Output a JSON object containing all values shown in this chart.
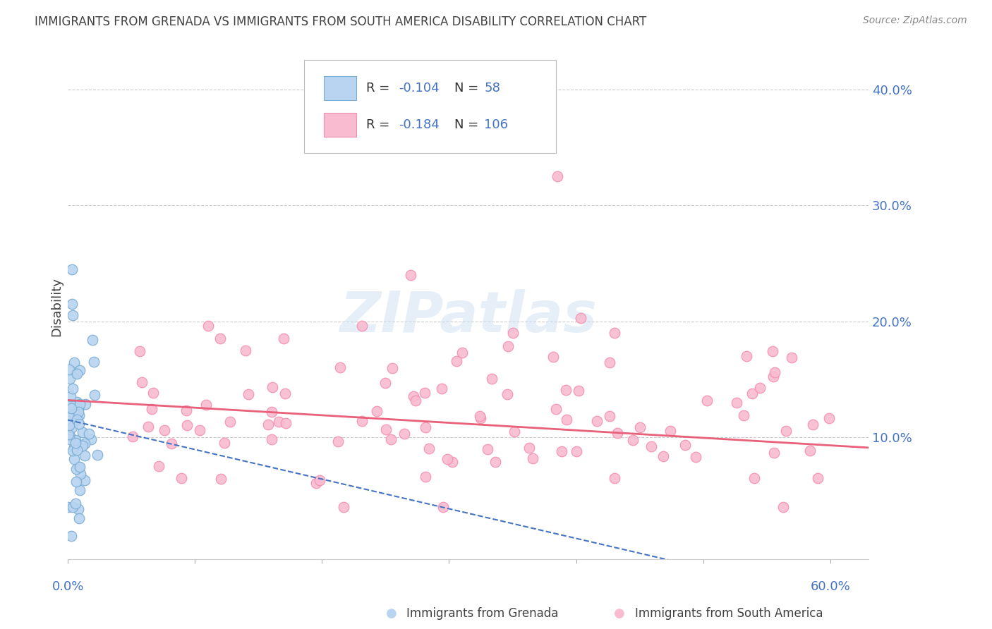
{
  "title": "IMMIGRANTS FROM GRENADA VS IMMIGRANTS FROM SOUTH AMERICA DISABILITY CORRELATION CHART",
  "source": "Source: ZipAtlas.com",
  "ylabel": "Disability",
  "xlim": [
    0.0,
    0.63
  ],
  "ylim": [
    -0.005,
    0.43
  ],
  "yticks": [
    0.0,
    0.1,
    0.2,
    0.3,
    0.4
  ],
  "xticks": [
    0.0,
    0.1,
    0.2,
    0.3,
    0.4,
    0.5,
    0.6
  ],
  "watermark": "ZIPatlas",
  "grenada_color": "#b8d4f0",
  "grenada_edge": "#7aadd4",
  "sa_color": "#f8bbd0",
  "sa_edge": "#f48fb1",
  "trendline_grenada_color": "#4472c4",
  "trendline_sa_color": "#e8607a",
  "grid_color": "#cccccc",
  "axis_color": "#4472c4",
  "title_color": "#404040",
  "legend_text_color": "#4472c4",
  "legend_r_color": "#4472c4",
  "legend_n_color": "#4472c4",
  "R_grenada": "-0.104",
  "N_grenada": "58",
  "R_sa": "-0.184",
  "N_sa": "106"
}
